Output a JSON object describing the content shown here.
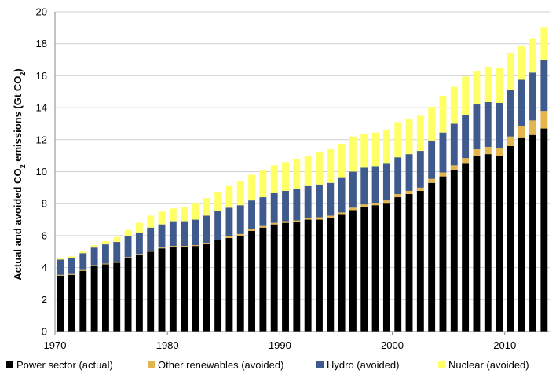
{
  "chart_data": {
    "type": "bar",
    "stacked": true,
    "title": "",
    "xlabel": "",
    "ylabel_parts": {
      "pre": "Actual and avoided CO",
      "sub1": "2",
      "mid": " emissions (Gt CO",
      "sub2": "2",
      "post": ")"
    },
    "ylim": [
      0,
      20
    ],
    "yticks": [
      0,
      2,
      4,
      6,
      8,
      10,
      12,
      14,
      16,
      18,
      20
    ],
    "xticks": [
      1970,
      1980,
      1990,
      2000,
      2010
    ],
    "grid": true,
    "legend_position": "bottom",
    "years": [
      1970,
      1971,
      1972,
      1973,
      1974,
      1975,
      1976,
      1977,
      1978,
      1979,
      1980,
      1981,
      1982,
      1983,
      1984,
      1985,
      1986,
      1987,
      1988,
      1989,
      1990,
      1991,
      1992,
      1993,
      1994,
      1995,
      1996,
      1997,
      1998,
      1999,
      2000,
      2001,
      2002,
      2003,
      2004,
      2005,
      2006,
      2007,
      2008,
      2009,
      2010,
      2011,
      2012,
      2013
    ],
    "series": [
      {
        "name": "Power sector (actual)",
        "color": "#000000",
        "values": [
          3.5,
          3.55,
          3.8,
          4.1,
          4.2,
          4.3,
          4.6,
          4.8,
          5.0,
          5.2,
          5.3,
          5.3,
          5.35,
          5.5,
          5.7,
          5.85,
          6.0,
          6.3,
          6.5,
          6.7,
          6.8,
          6.85,
          7.0,
          7.0,
          7.1,
          7.3,
          7.6,
          7.8,
          7.9,
          8.0,
          8.4,
          8.6,
          8.8,
          9.3,
          9.7,
          10.1,
          10.5,
          11.0,
          11.1,
          11.0,
          11.6,
          12.1,
          12.3,
          12.7
        ]
      },
      {
        "name": "Other renewables (avoided)",
        "color": "#e2b54e",
        "values": [
          0.05,
          0.05,
          0.05,
          0.05,
          0.05,
          0.05,
          0.05,
          0.05,
          0.05,
          0.05,
          0.05,
          0.05,
          0.05,
          0.05,
          0.05,
          0.1,
          0.1,
          0.1,
          0.1,
          0.1,
          0.1,
          0.1,
          0.1,
          0.15,
          0.15,
          0.15,
          0.15,
          0.15,
          0.15,
          0.2,
          0.2,
          0.2,
          0.2,
          0.25,
          0.25,
          0.3,
          0.35,
          0.4,
          0.45,
          0.5,
          0.6,
          0.75,
          0.9,
          1.1
        ]
      },
      {
        "name": "Hydro (avoided)",
        "color": "#3f5a8c",
        "values": [
          0.95,
          1.0,
          1.05,
          1.1,
          1.2,
          1.25,
          1.3,
          1.35,
          1.45,
          1.45,
          1.55,
          1.55,
          1.6,
          1.7,
          1.8,
          1.8,
          1.8,
          1.8,
          1.8,
          1.85,
          1.9,
          1.95,
          2.0,
          2.05,
          2.05,
          2.2,
          2.25,
          2.3,
          2.3,
          2.3,
          2.3,
          2.3,
          2.3,
          2.4,
          2.5,
          2.6,
          2.7,
          2.8,
          2.8,
          2.8,
          2.9,
          2.9,
          3.0,
          3.2
        ]
      },
      {
        "name": "Nuclear (avoided)",
        "color": "#ffff66",
        "values": [
          0.1,
          0.1,
          0.1,
          0.15,
          0.2,
          0.3,
          0.4,
          0.6,
          0.75,
          0.8,
          0.8,
          0.9,
          1.0,
          1.1,
          1.2,
          1.35,
          1.5,
          1.6,
          1.7,
          1.75,
          1.8,
          1.9,
          1.9,
          2.0,
          2.1,
          2.1,
          2.2,
          2.1,
          2.1,
          2.1,
          2.2,
          2.2,
          2.2,
          2.1,
          2.3,
          2.3,
          2.4,
          2.1,
          2.2,
          2.2,
          2.3,
          2.1,
          2.1,
          2.0
        ]
      }
    ]
  }
}
